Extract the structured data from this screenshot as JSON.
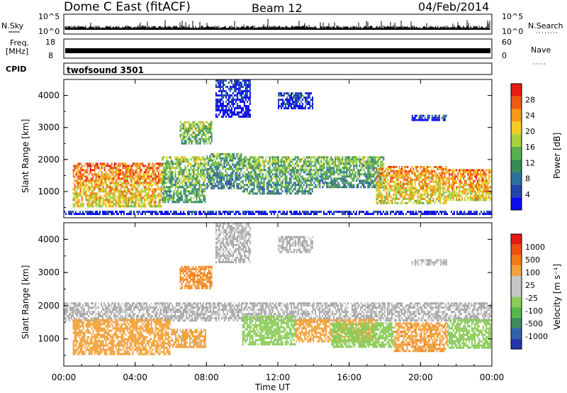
{
  "header": {
    "station": "Dome C East (fitACF)",
    "beam": "Beam 12",
    "date": "04/Feb/2014"
  },
  "noise_panel": {
    "left_label": "N.Sky",
    "right_label": "N.Search",
    "left_ticks": [
      "10^5",
      "10^0"
    ],
    "right_ticks": [
      "10^5",
      "10^0"
    ]
  },
  "freq_panel": {
    "left_label_1": "Freq.",
    "left_label_2": "[MHz]",
    "right_label": "Nave",
    "left_ticks": [
      "18",
      "8"
    ],
    "right_ticks": [
      "60",
      "0"
    ]
  },
  "cpid_panel": {
    "label": "CPID",
    "value": "twofsound 3501"
  },
  "colors": {
    "power_scale": [
      "#0b0bf0",
      "#2244aa",
      "#2d6e9a",
      "#3a8a56",
      "#57b04a",
      "#a7d23a",
      "#f2cc22",
      "#f39a16",
      "#ee5a12",
      "#e61a10"
    ],
    "velocity_scale": [
      "#2336a8",
      "#2f62a8",
      "#3e8c5c",
      "#56b64a",
      "#8ccc5a",
      "#c6c6c6",
      "#c6c6c6",
      "#f2a23a",
      "#f07b18",
      "#ee4e12",
      "#e41a12"
    ],
    "ground_scatter": "#aaaaaa"
  },
  "chart_data": [
    {
      "type": "heatmap",
      "panel": "power",
      "ylabel": "Slant Range [km]",
      "xlabel": "",
      "colorbar_label": "Power [dB]",
      "colorbar_ticks": [
        "28",
        "24",
        "20",
        "16",
        "12",
        "8",
        "4"
      ],
      "colorbar_range": [
        0,
        32
      ],
      "x_ticks": [
        "00:00",
        "04:00",
        "08:00",
        "12:00",
        "16:00",
        "20:00",
        "00:00"
      ],
      "y_ticks": [
        "4000",
        "3000",
        "2000",
        "1000"
      ],
      "ylim": [
        180,
        4500
      ],
      "x_range_hours": [
        0,
        24
      ],
      "echo_bands": [
        {
          "t_start": 0.5,
          "t_end": 5.5,
          "r_low": 480,
          "r_high": 1900,
          "level": 0.82
        },
        {
          "t_start": 5.5,
          "t_end": 8.0,
          "r_low": 650,
          "r_high": 2100,
          "level": 0.55
        },
        {
          "t_start": 8.0,
          "t_end": 10.0,
          "r_low": 1100,
          "r_high": 2200,
          "level": 0.45
        },
        {
          "t_start": 10.0,
          "t_end": 14.0,
          "r_low": 900,
          "r_high": 2100,
          "level": 0.5
        },
        {
          "t_start": 14.0,
          "t_end": 18.0,
          "r_low": 1100,
          "r_high": 2100,
          "level": 0.48
        },
        {
          "t_start": 17.5,
          "t_end": 21.5,
          "r_low": 600,
          "r_high": 1800,
          "level": 0.78
        },
        {
          "t_start": 21.5,
          "t_end": 24.0,
          "r_low": 700,
          "r_high": 1700,
          "level": 0.82
        },
        {
          "t_start": 6.5,
          "t_end": 8.3,
          "r_low": 2500,
          "r_high": 3200,
          "level": 0.55
        },
        {
          "t_start": 8.5,
          "t_end": 10.5,
          "r_low": 3300,
          "r_high": 4500,
          "level": 0.15
        },
        {
          "t_start": 12.0,
          "t_end": 14.0,
          "r_low": 3600,
          "r_high": 4100,
          "level": 0.2
        },
        {
          "t_start": 19.5,
          "t_end": 21.5,
          "r_low": 3200,
          "r_high": 3400,
          "level": 0.15
        },
        {
          "t_start": 0.0,
          "t_end": 24.0,
          "r_low": 250,
          "r_high": 400,
          "level": 0.1
        }
      ]
    },
    {
      "type": "heatmap",
      "panel": "velocity",
      "ylabel": "Slant Range [km]",
      "xlabel": "Time UT",
      "colorbar_label": "Velocity [m s⁻¹]",
      "colorbar_ticks": [
        "1000",
        "500",
        "100",
        "25",
        "-25",
        "-100",
        "-500",
        "-1000"
      ],
      "colorbar_range": [
        -1000,
        1000
      ],
      "x_ticks": [
        "00:00",
        "04:00",
        "08:00",
        "12:00",
        "16:00",
        "20:00",
        "00:00"
      ],
      "y_ticks": [
        "4000",
        "3000",
        "2000",
        "1000"
      ],
      "ylim": [
        180,
        4500
      ],
      "x_range_hours": [
        0,
        24
      ],
      "echo_bands": [
        {
          "t_start": 0.0,
          "t_end": 24.0,
          "r_low": 1500,
          "r_high": 2100,
          "level": "ground"
        },
        {
          "t_start": 0.5,
          "t_end": 6.0,
          "r_low": 500,
          "r_high": 1600,
          "level": -200
        },
        {
          "t_start": 6.0,
          "t_end": 8.0,
          "r_low": 700,
          "r_high": 1300,
          "level": -150
        },
        {
          "t_start": 10.0,
          "t_end": 13.0,
          "r_low": 800,
          "r_high": 1700,
          "level": 150
        },
        {
          "t_start": 13.0,
          "t_end": 17.5,
          "r_low": 900,
          "r_high": 1600,
          "level": -200
        },
        {
          "t_start": 15.0,
          "t_end": 18.5,
          "r_low": 700,
          "r_high": 1500,
          "level": 120
        },
        {
          "t_start": 18.5,
          "t_end": 21.5,
          "r_low": 600,
          "r_high": 1500,
          "level": -250
        },
        {
          "t_start": 21.5,
          "t_end": 24.0,
          "r_low": 700,
          "r_high": 1600,
          "level": 150
        },
        {
          "t_start": 6.5,
          "t_end": 8.3,
          "r_low": 2500,
          "r_high": 3200,
          "level": -300
        },
        {
          "t_start": 8.5,
          "t_end": 10.5,
          "r_low": 3300,
          "r_high": 4500,
          "level": "ground"
        },
        {
          "t_start": 12.0,
          "t_end": 14.0,
          "r_low": 3600,
          "r_high": 4100,
          "level": "ground"
        },
        {
          "t_start": 19.5,
          "t_end": 21.5,
          "r_low": 3200,
          "r_high": 3400,
          "level": "ground"
        }
      ]
    }
  ]
}
